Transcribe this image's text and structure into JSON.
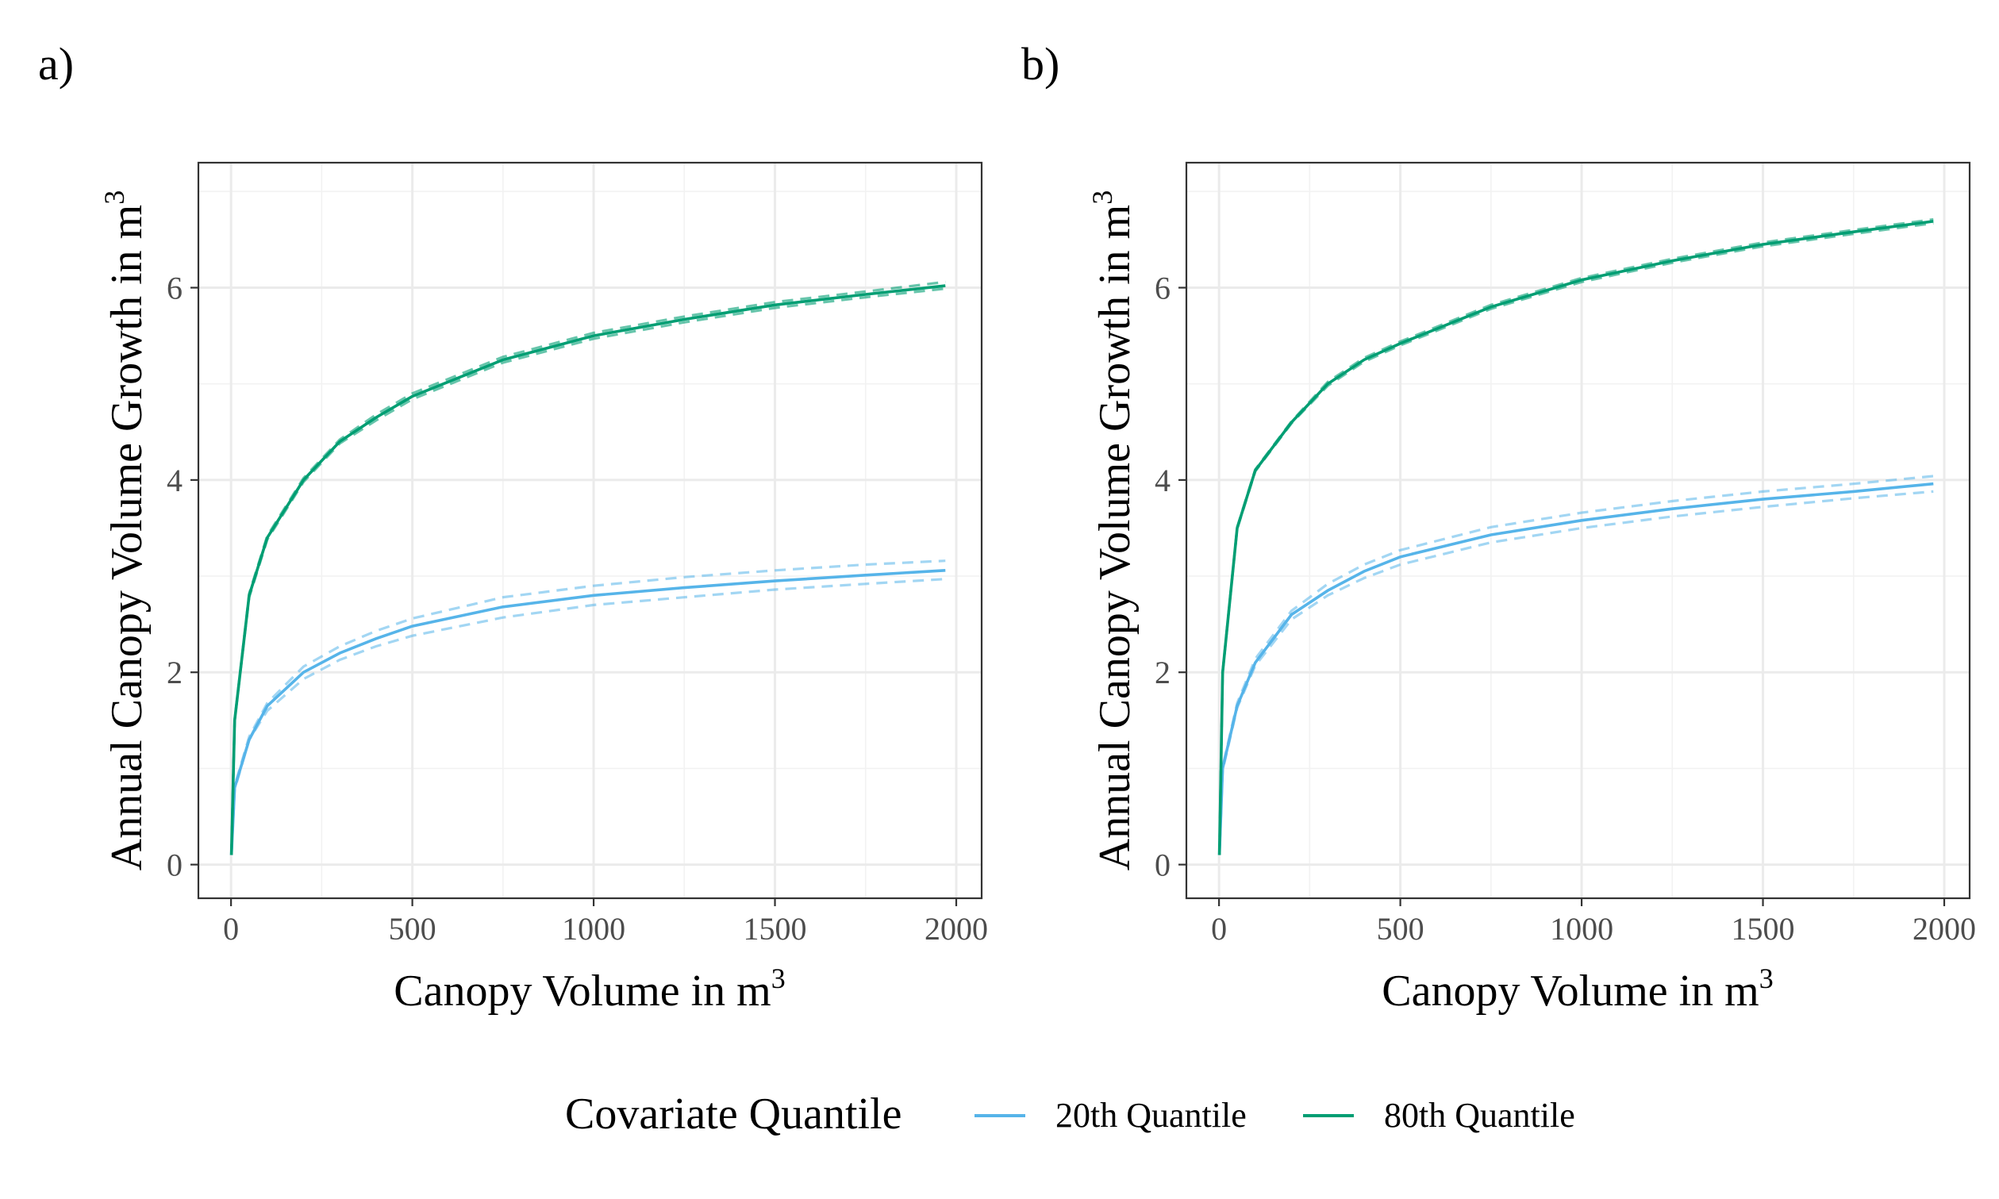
{
  "chart_data": [
    {
      "type": "line",
      "panel_label": "a)",
      "xlabel": "Canopy Volume in m",
      "xlabel_sup": "3",
      "ylabel": "Annual Canopy Volume Growth in m",
      "ylabel_sup": "3",
      "xlim": [
        -90,
        2070
      ],
      "ylim": [
        -0.35,
        7.3
      ],
      "x_ticks": [
        0,
        500,
        1000,
        1500,
        2000
      ],
      "x_tick_labels": [
        "0",
        "500",
        "1000",
        "1500",
        "2000"
      ],
      "y_ticks": [
        0,
        2,
        4,
        6
      ],
      "y_tick_labels": [
        "0",
        "2",
        "4",
        "6"
      ],
      "x_minor": [
        250,
        750,
        1250,
        1750
      ],
      "y_minor": [
        1,
        3,
        5,
        7
      ],
      "grid": true,
      "series": [
        {
          "name": "20th Quantile",
          "color": "#56B4E9",
          "x": [
            1,
            10,
            50,
            100,
            200,
            300,
            400,
            500,
            750,
            1000,
            1250,
            1500,
            1750,
            1970
          ],
          "y": [
            0.1,
            0.8,
            1.3,
            1.65,
            2.0,
            2.2,
            2.35,
            2.48,
            2.68,
            2.8,
            2.88,
            2.95,
            3.01,
            3.06
          ],
          "lower": [
            0.1,
            0.78,
            1.3,
            1.6,
            1.93,
            2.13,
            2.27,
            2.38,
            2.57,
            2.7,
            2.78,
            2.86,
            2.92,
            2.97
          ],
          "upper": [
            0.12,
            0.82,
            1.33,
            1.68,
            2.06,
            2.27,
            2.43,
            2.56,
            2.78,
            2.9,
            2.99,
            3.06,
            3.12,
            3.16
          ]
        },
        {
          "name": "80th Quantile",
          "color": "#009E73",
          "x": [
            1,
            10,
            50,
            100,
            200,
            300,
            400,
            500,
            750,
            1000,
            1250,
            1500,
            1750,
            1970
          ],
          "y": [
            0.1,
            1.5,
            2.8,
            3.4,
            4.0,
            4.4,
            4.65,
            4.87,
            5.25,
            5.5,
            5.67,
            5.82,
            5.93,
            6.02
          ],
          "lower": [
            0.1,
            1.5,
            2.78,
            3.38,
            3.98,
            4.38,
            4.62,
            4.84,
            5.22,
            5.47,
            5.64,
            5.79,
            5.9,
            5.99
          ],
          "upper": [
            0.1,
            1.5,
            2.82,
            3.42,
            4.02,
            4.42,
            4.68,
            4.9,
            5.28,
            5.53,
            5.7,
            5.85,
            5.96,
            6.06
          ]
        }
      ]
    },
    {
      "type": "line",
      "panel_label": "b)",
      "xlabel": "Canopy Volume in m",
      "xlabel_sup": "3",
      "ylabel": "Annual Canopy Volume Growth in m",
      "ylabel_sup": "3",
      "xlim": [
        -90,
        2070
      ],
      "ylim": [
        -0.35,
        7.3
      ],
      "x_ticks": [
        0,
        500,
        1000,
        1500,
        2000
      ],
      "x_tick_labels": [
        "0",
        "500",
        "1000",
        "1500",
        "2000"
      ],
      "y_ticks": [
        0,
        2,
        4,
        6
      ],
      "y_tick_labels": [
        "0",
        "2",
        "4",
        "6"
      ],
      "x_minor": [
        250,
        750,
        1250,
        1750
      ],
      "y_minor": [
        1,
        3,
        5,
        7
      ],
      "grid": true,
      "series": [
        {
          "name": "20th Quantile",
          "color": "#56B4E9",
          "x": [
            1,
            10,
            50,
            100,
            200,
            300,
            400,
            500,
            750,
            1000,
            1250,
            1500,
            1750,
            1970
          ],
          "y": [
            0.1,
            1.0,
            1.65,
            2.1,
            2.6,
            2.85,
            3.05,
            3.2,
            3.43,
            3.58,
            3.7,
            3.8,
            3.88,
            3.96
          ],
          "lower": [
            0.1,
            0.98,
            1.63,
            2.07,
            2.55,
            2.8,
            2.98,
            3.12,
            3.35,
            3.5,
            3.62,
            3.72,
            3.81,
            3.88
          ],
          "upper": [
            0.12,
            1.02,
            1.68,
            2.14,
            2.64,
            2.92,
            3.12,
            3.27,
            3.51,
            3.66,
            3.78,
            3.88,
            3.96,
            4.04
          ]
        },
        {
          "name": "80th Quantile",
          "color": "#009E73",
          "x": [
            1,
            10,
            50,
            100,
            200,
            300,
            400,
            500,
            750,
            1000,
            1250,
            1500,
            1750,
            1970
          ],
          "y": [
            0.1,
            2.0,
            3.5,
            4.1,
            4.6,
            5.0,
            5.25,
            5.42,
            5.8,
            6.08,
            6.28,
            6.45,
            6.58,
            6.69
          ],
          "lower": [
            0.1,
            2.0,
            3.49,
            4.09,
            4.59,
            4.98,
            5.23,
            5.4,
            5.78,
            6.06,
            6.26,
            6.43,
            6.56,
            6.67
          ],
          "upper": [
            0.1,
            2.0,
            3.51,
            4.11,
            4.61,
            5.02,
            5.27,
            5.44,
            5.82,
            6.1,
            6.3,
            6.47,
            6.6,
            6.71
          ]
        }
      ]
    }
  ],
  "legend": {
    "title": "Covariate Quantile",
    "entries": [
      {
        "label": "20th Quantile",
        "color": "#56B4E9"
      },
      {
        "label": "80th Quantile",
        "color": "#009E73"
      }
    ]
  }
}
